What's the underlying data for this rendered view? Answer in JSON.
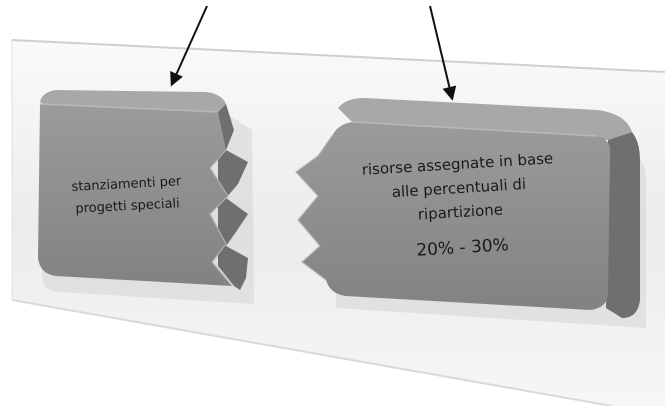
{
  "blocks": {
    "left": {
      "lines": [
        "stanziamenti per",
        "progetti speciali"
      ]
    },
    "right": {
      "lines": [
        "risorse assegnate in base",
        "alle percentuali di",
        "ripartizione"
      ],
      "value": "20% - 30%"
    }
  },
  "colors": {
    "block_face": "#8e8e8e",
    "block_top": "#a6a6a6",
    "block_side": "#6e6e6e",
    "band": "#f4f4f4",
    "arrow": "#111111"
  }
}
